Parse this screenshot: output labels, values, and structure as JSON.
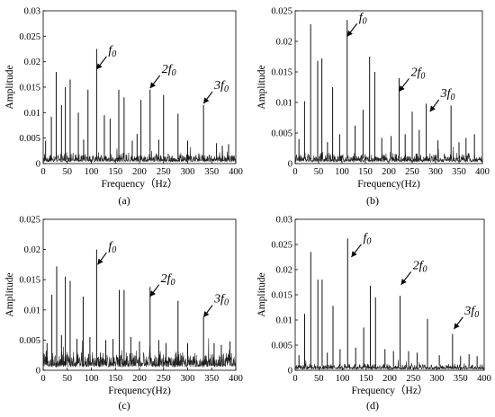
{
  "chart_data": [
    {
      "type": "line",
      "panel_label": "(a)",
      "xlabel": "Frequency（Hz）",
      "ylabel": "Amplitude",
      "xlim": [
        0,
        400
      ],
      "ylim": [
        0,
        0.03
      ],
      "xticks": [
        "0",
        "50",
        "100",
        "150",
        "200",
        "250",
        "300",
        "350",
        "400"
      ],
      "yticks": [
        "0",
        "0.005",
        "0.01",
        "0.015",
        "0.02",
        "0.025",
        "0.03"
      ],
      "series": [
        {
          "peaks": [
            {
              "x": 5,
              "y": 0.0045
            },
            {
              "x": 17,
              "y": 0.0092
            },
            {
              "x": 27,
              "y": 0.018
            },
            {
              "x": 38,
              "y": 0.0115
            },
            {
              "x": 46,
              "y": 0.015
            },
            {
              "x": 56,
              "y": 0.0165
            },
            {
              "x": 73,
              "y": 0.01
            },
            {
              "x": 84,
              "y": 0.0047
            },
            {
              "x": 93,
              "y": 0.0145
            },
            {
              "x": 111,
              "y": 0.0225
            },
            {
              "x": 127,
              "y": 0.0095
            },
            {
              "x": 139,
              "y": 0.0088
            },
            {
              "x": 157,
              "y": 0.0145
            },
            {
              "x": 168,
              "y": 0.013
            },
            {
              "x": 185,
              "y": 0.0045
            },
            {
              "x": 195,
              "y": 0.0058
            },
            {
              "x": 203,
              "y": 0.0125
            },
            {
              "x": 222,
              "y": 0.0145
            },
            {
              "x": 240,
              "y": 0.0047
            },
            {
              "x": 250,
              "y": 0.0135
            },
            {
              "x": 280,
              "y": 0.0098
            },
            {
              "x": 300,
              "y": 0.0045
            },
            {
              "x": 333,
              "y": 0.0115
            },
            {
              "x": 360,
              "y": 0.004
            },
            {
              "x": 372,
              "y": 0.0035
            },
            {
              "x": 385,
              "y": 0.0038
            }
          ],
          "noise_level": 0.0015
        }
      ],
      "annotations": [
        {
          "base": "f",
          "sub": "0",
          "prefix": "",
          "arrow_to": {
            "x": 111,
            "y": 0.0185
          }
        },
        {
          "base": "f",
          "sub": "0",
          "prefix": "2",
          "arrow_to": {
            "x": 222,
            "y": 0.0148
          }
        },
        {
          "base": "f",
          "sub": "0",
          "prefix": "3",
          "arrow_to": {
            "x": 333,
            "y": 0.0118
          }
        }
      ]
    },
    {
      "type": "line",
      "panel_label": "(b)",
      "xlabel": "Frequency(Hz)",
      "ylabel": "Amplitude",
      "xlim": [
        0,
        400
      ],
      "ylim": [
        0,
        0.025
      ],
      "xticks": [
        "0",
        "50",
        "100",
        "150",
        "200",
        "250",
        "300",
        "350",
        "400"
      ],
      "yticks": [
        "0",
        "0.005",
        "0.01",
        "0.015",
        "0.02",
        "0.025"
      ],
      "series": [
        {
          "peaks": [
            {
              "x": 8,
              "y": 0.004
            },
            {
              "x": 20,
              "y": 0.0102
            },
            {
              "x": 33,
              "y": 0.0228
            },
            {
              "x": 48,
              "y": 0.0168
            },
            {
              "x": 57,
              "y": 0.0172
            },
            {
              "x": 69,
              "y": 0.0035
            },
            {
              "x": 80,
              "y": 0.0125
            },
            {
              "x": 95,
              "y": 0.0048
            },
            {
              "x": 111,
              "y": 0.0235
            },
            {
              "x": 128,
              "y": 0.0062
            },
            {
              "x": 145,
              "y": 0.0088
            },
            {
              "x": 159,
              "y": 0.0175
            },
            {
              "x": 170,
              "y": 0.015
            },
            {
              "x": 185,
              "y": 0.0042
            },
            {
              "x": 205,
              "y": 0.0045
            },
            {
              "x": 222,
              "y": 0.014
            },
            {
              "x": 235,
              "y": 0.0048
            },
            {
              "x": 250,
              "y": 0.0085
            },
            {
              "x": 265,
              "y": 0.0055
            },
            {
              "x": 280,
              "y": 0.0098
            },
            {
              "x": 305,
              "y": 0.0038
            },
            {
              "x": 333,
              "y": 0.0095
            },
            {
              "x": 350,
              "y": 0.0035
            },
            {
              "x": 365,
              "y": 0.0042
            },
            {
              "x": 383,
              "y": 0.0048
            }
          ],
          "noise_level": 0.0012
        }
      ],
      "annotations": [
        {
          "base": "f",
          "sub": "0",
          "prefix": "",
          "arrow_to": {
            "x": 111,
            "y": 0.0208
          }
        },
        {
          "base": "f",
          "sub": "0",
          "prefix": "2",
          "arrow_to": {
            "x": 222,
            "y": 0.0118
          }
        },
        {
          "base": "f",
          "sub": "0",
          "prefix": "3",
          "arrow_to": {
            "x": 288,
            "y": 0.0085
          }
        }
      ]
    },
    {
      "type": "line",
      "panel_label": "(c)",
      "xlabel": "Frequency(Hz)",
      "ylabel": "Amplitude",
      "xlim": [
        0,
        400
      ],
      "ylim": [
        0,
        0.025
      ],
      "xticks": [
        "0",
        "50",
        "100",
        "150",
        "200",
        "250",
        "300",
        "350",
        "400"
      ],
      "yticks": [
        "0",
        "0.005",
        "0.01",
        "0.015",
        "0.02",
        "0.025"
      ],
      "series": [
        {
          "peaks": [
            {
              "x": 8,
              "y": 0.0045
            },
            {
              "x": 18,
              "y": 0.0125
            },
            {
              "x": 28,
              "y": 0.0172
            },
            {
              "x": 38,
              "y": 0.0058
            },
            {
              "x": 46,
              "y": 0.0155
            },
            {
              "x": 56,
              "y": 0.0148
            },
            {
              "x": 70,
              "y": 0.0052
            },
            {
              "x": 83,
              "y": 0.0122
            },
            {
              "x": 97,
              "y": 0.0055
            },
            {
              "x": 111,
              "y": 0.02
            },
            {
              "x": 130,
              "y": 0.005
            },
            {
              "x": 145,
              "y": 0.0052
            },
            {
              "x": 158,
              "y": 0.0133
            },
            {
              "x": 168,
              "y": 0.0133
            },
            {
              "x": 182,
              "y": 0.0055
            },
            {
              "x": 200,
              "y": 0.0048
            },
            {
              "x": 222,
              "y": 0.0138
            },
            {
              "x": 240,
              "y": 0.005
            },
            {
              "x": 255,
              "y": 0.0045
            },
            {
              "x": 280,
              "y": 0.0115
            },
            {
              "x": 300,
              "y": 0.0045
            },
            {
              "x": 333,
              "y": 0.0088
            },
            {
              "x": 355,
              "y": 0.0045
            },
            {
              "x": 370,
              "y": 0.0042
            },
            {
              "x": 388,
              "y": 0.0048
            }
          ],
          "noise_level": 0.0022
        }
      ],
      "annotations": [
        {
          "base": "f",
          "sub": "0",
          "prefix": "",
          "arrow_to": {
            "x": 113,
            "y": 0.0175
          }
        },
        {
          "base": "f",
          "sub": "0",
          "prefix": "2",
          "arrow_to": {
            "x": 222,
            "y": 0.0122
          }
        },
        {
          "base": "f",
          "sub": "0",
          "prefix": "3",
          "arrow_to": {
            "x": 333,
            "y": 0.0088
          }
        }
      ]
    },
    {
      "type": "line",
      "panel_label": "(d)",
      "xlabel": "Frequency（Hz）",
      "ylabel": "Amplitude",
      "xlim": [
        0,
        400
      ],
      "ylim": [
        0,
        0.03
      ],
      "xticks": [
        "0",
        "50",
        "100",
        "150",
        "200",
        "250",
        "300",
        "350",
        "400"
      ],
      "yticks": [
        "0",
        "0.005",
        "0.01",
        "0.015",
        "0.02",
        "0.025",
        "0.03"
      ],
      "series": [
        {
          "peaks": [
            {
              "x": 8,
              "y": 0.003
            },
            {
              "x": 20,
              "y": 0.0112
            },
            {
              "x": 33,
              "y": 0.0235
            },
            {
              "x": 48,
              "y": 0.018
            },
            {
              "x": 57,
              "y": 0.018
            },
            {
              "x": 68,
              "y": 0.0035
            },
            {
              "x": 80,
              "y": 0.0128
            },
            {
              "x": 95,
              "y": 0.0042
            },
            {
              "x": 111,
              "y": 0.0262
            },
            {
              "x": 128,
              "y": 0.0045
            },
            {
              "x": 145,
              "y": 0.0085
            },
            {
              "x": 159,
              "y": 0.0168
            },
            {
              "x": 170,
              "y": 0.0145
            },
            {
              "x": 190,
              "y": 0.0042
            },
            {
              "x": 208,
              "y": 0.0038
            },
            {
              "x": 222,
              "y": 0.0148
            },
            {
              "x": 240,
              "y": 0.0038
            },
            {
              "x": 258,
              "y": 0.0035
            },
            {
              "x": 280,
              "y": 0.0102
            },
            {
              "x": 305,
              "y": 0.003
            },
            {
              "x": 333,
              "y": 0.0072
            },
            {
              "x": 350,
              "y": 0.0028
            },
            {
              "x": 368,
              "y": 0.0032
            },
            {
              "x": 385,
              "y": 0.0028
            }
          ],
          "noise_level": 0.0009
        }
      ],
      "annotations": [
        {
          "base": "f",
          "sub": "0",
          "prefix": "",
          "arrow_to": {
            "x": 119,
            "y": 0.0225
          }
        },
        {
          "base": "f",
          "sub": "0",
          "prefix": "2",
          "arrow_to": {
            "x": 224,
            "y": 0.017
          }
        },
        {
          "base": "f",
          "sub": "0",
          "prefix": "3",
          "arrow_to": {
            "x": 336,
            "y": 0.0082
          }
        }
      ]
    }
  ]
}
